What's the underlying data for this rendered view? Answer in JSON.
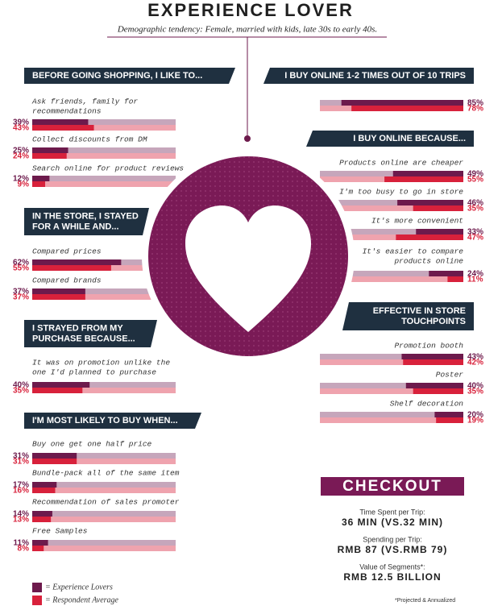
{
  "title": "EXPERIENCE LOVER",
  "subtitle": "Demographic tendency: Female, married with kids, late 30s to early 40s.",
  "series": [
    {
      "name": "= Experience Lovers",
      "color": "#6d1a4c",
      "track": "#c6a6bb"
    },
    {
      "name": "= Respondent Average",
      "color": "#d8213b",
      "track": "#efa3ae"
    }
  ],
  "sections": [
    {
      "side": "left",
      "heading": [
        "BEFORE GOING SHOPPING, I LIKE TO..."
      ],
      "items": [
        {
          "label": [
            "Ask friends, family for",
            "recommendations"
          ],
          "values": [
            39,
            43
          ],
          "value_labels": [
            "39%",
            "43%"
          ]
        },
        {
          "label": [
            "Collect discounts from DM"
          ],
          "values": [
            25,
            24
          ],
          "value_labels": [
            "25%",
            "24%"
          ]
        },
        {
          "label": [
            "Search online for product reviews"
          ],
          "values": [
            12,
            9
          ],
          "value_labels": [
            "12%",
            "9%"
          ]
        }
      ]
    },
    {
      "side": "left",
      "heading": [
        "IN THE STORE,  I STAYED",
        "FOR A WHILE AND..."
      ],
      "items": [
        {
          "label": [
            "Compared prices"
          ],
          "values": [
            62,
            55
          ],
          "value_labels": [
            "62%",
            "55%"
          ]
        },
        {
          "label": [
            "Compared brands"
          ],
          "values": [
            37,
            37
          ],
          "value_labels": [
            "37%",
            "37%"
          ]
        }
      ]
    },
    {
      "side": "left",
      "heading": [
        "I STRAYED FROM MY",
        "PURCHASE BECAUSE..."
      ],
      "items": [
        {
          "label": [
            "It was on promotion unlike the",
            "one I'd planned to purchase"
          ],
          "values": [
            40,
            35
          ],
          "value_labels": [
            "40%",
            "35%"
          ]
        }
      ]
    },
    {
      "side": "left",
      "heading": [
        "I'M MOST LIKELY TO BUY WHEN..."
      ],
      "items": [
        {
          "label": [
            "Buy one get one half price"
          ],
          "values": [
            31,
            31
          ],
          "value_labels": [
            "31%",
            "31%"
          ]
        },
        {
          "label": [
            "Bundle-pack all of the same item"
          ],
          "values": [
            17,
            16
          ],
          "value_labels": [
            "17%",
            "16%"
          ]
        },
        {
          "label": [
            "Recommendation of sales promoter"
          ],
          "values": [
            14,
            13
          ],
          "value_labels": [
            "14%",
            "13%"
          ]
        },
        {
          "label": [
            "Free Samples"
          ],
          "values": [
            11,
            8
          ],
          "value_labels": [
            "11%",
            "8%"
          ]
        }
      ]
    },
    {
      "side": "right",
      "heading": [
        "I BUY ONLINE 1-2 TIMES OUT OF 10 TRIPS"
      ],
      "items": [
        {
          "label": [],
          "values": [
            85,
            78
          ],
          "value_labels": [
            "85%",
            "78%"
          ]
        }
      ]
    },
    {
      "side": "right",
      "heading": [
        "I BUY ONLINE BECAUSE..."
      ],
      "items": [
        {
          "label": [
            "Products online are cheaper"
          ],
          "values": [
            49,
            55
          ],
          "value_labels": [
            "49%",
            "55%"
          ]
        },
        {
          "label": [
            "I'm too busy to go in store"
          ],
          "values": [
            46,
            35
          ],
          "value_labels": [
            "46%",
            "35%"
          ]
        },
        {
          "label": [
            "It's more convenient"
          ],
          "values": [
            33,
            47
          ],
          "value_labels": [
            "33%",
            "47%"
          ]
        },
        {
          "label": [
            "It's easier to compare",
            "products online"
          ],
          "values": [
            24,
            11
          ],
          "value_labels": [
            "24%",
            "11%"
          ]
        }
      ]
    },
    {
      "side": "right",
      "heading": [
        "EFFECTIVE IN STORE",
        "TOUCHPOINTS"
      ],
      "items": [
        {
          "label": [
            "Promotion booth"
          ],
          "values": [
            43,
            42
          ],
          "value_labels": [
            "43%",
            "42%"
          ]
        },
        {
          "label": [
            "Poster"
          ],
          "values": [
            40,
            35
          ],
          "value_labels": [
            "40%",
            "35%"
          ]
        },
        {
          "label": [
            "Shelf decoration"
          ],
          "values": [
            20,
            19
          ],
          "value_labels": [
            "20%",
            "19%"
          ]
        }
      ]
    }
  ],
  "checkout": {
    "title": "CHECKOUT",
    "rows": [
      {
        "label": "Time Spent per Trip:",
        "value": "36 MIN (VS.32 MIN)"
      },
      {
        "label": "Spending per Trip:",
        "value": "RMB 87 (VS.RMB 79)"
      },
      {
        "label": "Value of Segments*:",
        "value": "RMB 12.5 BILLION"
      }
    ]
  },
  "footnote": "*Projected & Annualized"
}
